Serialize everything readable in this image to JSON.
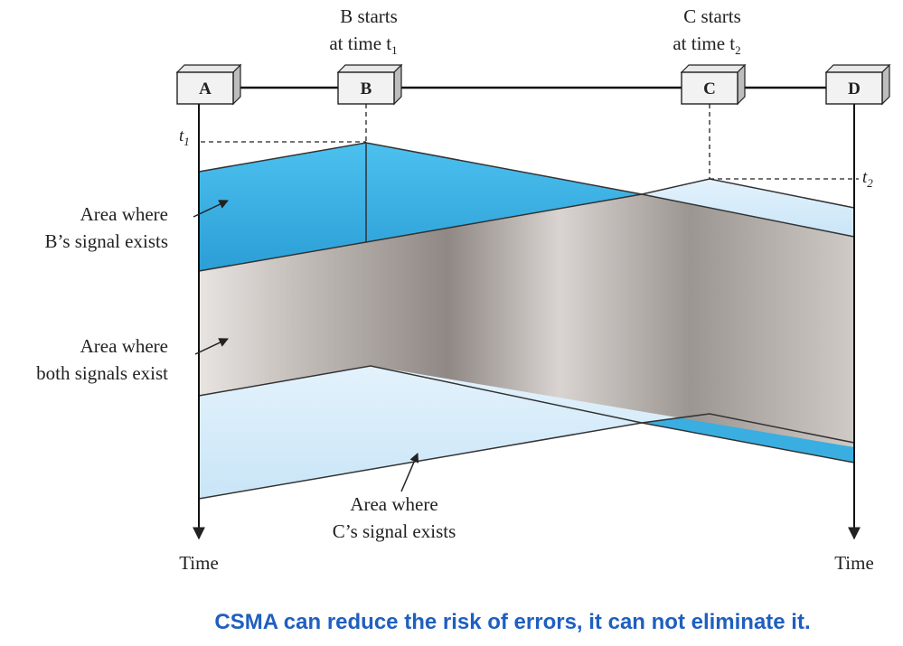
{
  "diagram": {
    "annotations": {
      "b_starts_line1": "B starts",
      "b_starts_line2": "at time t",
      "b_starts_sub": "1",
      "c_starts_line1": "C starts",
      "c_starts_line2": "at time t",
      "c_starts_sub": "2",
      "t1": "t",
      "t1_sub": "1",
      "t2": "t",
      "t2_sub": "2"
    },
    "stations": [
      {
        "id": "A",
        "label": "A"
      },
      {
        "id": "B",
        "label": "B"
      },
      {
        "id": "C",
        "label": "C"
      },
      {
        "id": "D",
        "label": "D"
      }
    ],
    "regions": {
      "b_signal_line1": "Area where",
      "b_signal_line2": "B’s signal exists",
      "both_line1": "Area where",
      "both_line2": "both signals exist",
      "c_signal_line1": "Area where",
      "c_signal_line2": "C’s signal exists"
    },
    "time_axis": {
      "left": "Time",
      "right": "Time"
    },
    "colors": {
      "b_signal": "#3aaee0",
      "c_signal": "#d6ecfa",
      "overlap_light": "#e2dedb",
      "overlap_dark": "#8f8884",
      "caption": "#1f5fbf"
    }
  },
  "caption": "CSMA can reduce the risk of errors, it can not eliminate it."
}
